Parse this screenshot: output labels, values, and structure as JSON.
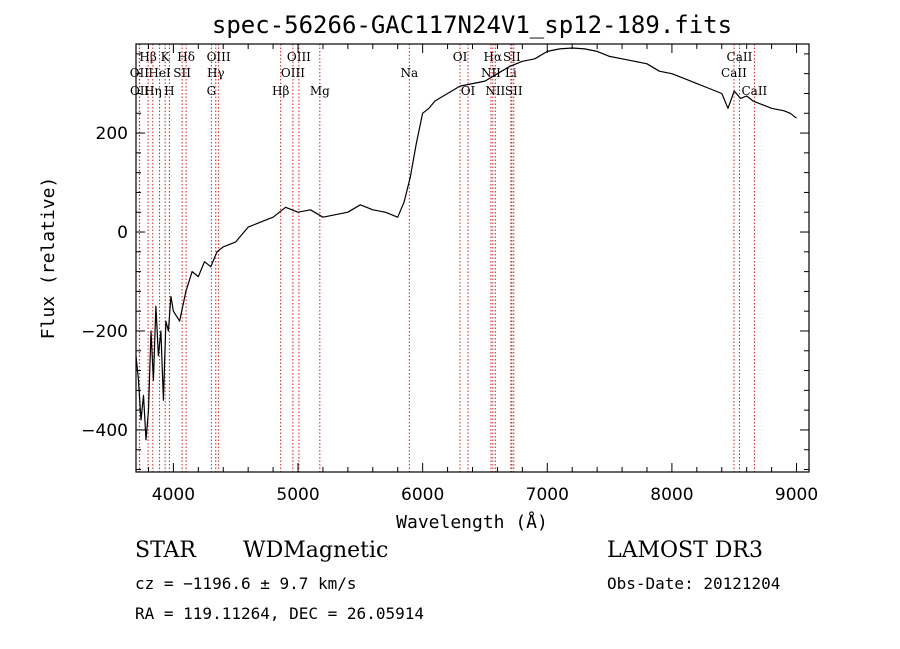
{
  "chart_data": {
    "type": "line",
    "title": "spec-56266-GAC117N24V1_sp12-189.fits",
    "xlabel": "Wavelength (Å)",
    "ylabel": "Flux (relative)",
    "xlim": [
      3700,
      9100
    ],
    "ylim": [
      -485,
      380
    ],
    "x_ticks": [
      4000,
      5000,
      6000,
      7000,
      8000,
      9000
    ],
    "y_ticks": [
      -400,
      -200,
      0,
      200
    ],
    "series": [
      {
        "name": "flux",
        "x": [
          3700,
          3720,
          3740,
          3760,
          3780,
          3800,
          3820,
          3840,
          3860,
          3880,
          3900,
          3920,
          3940,
          3960,
          3980,
          4000,
          4050,
          4100,
          4150,
          4200,
          4250,
          4300,
          4350,
          4400,
          4500,
          4600,
          4700,
          4800,
          4900,
          5000,
          5100,
          5200,
          5300,
          5400,
          5500,
          5600,
          5700,
          5800,
          5850,
          5900,
          5950,
          6000,
          6050,
          6100,
          6200,
          6300,
          6400,
          6500,
          6600,
          6700,
          6800,
          6900,
          7000,
          7100,
          7200,
          7300,
          7400,
          7500,
          7600,
          7700,
          7800,
          7900,
          8000,
          8100,
          8200,
          8300,
          8400,
          8450,
          8500,
          8550,
          8600,
          8650,
          8700,
          8800,
          8900,
          8950,
          9000
        ],
        "y": [
          -250,
          -300,
          -380,
          -330,
          -420,
          -360,
          -200,
          -300,
          -150,
          -250,
          -200,
          -340,
          -180,
          -200,
          -130,
          -160,
          -180,
          -120,
          -80,
          -90,
          -60,
          -70,
          -40,
          -30,
          -20,
          10,
          20,
          30,
          50,
          40,
          45,
          30,
          35,
          40,
          55,
          45,
          40,
          30,
          60,
          110,
          180,
          240,
          250,
          265,
          280,
          295,
          300,
          305,
          320,
          335,
          345,
          350,
          365,
          370,
          372,
          370,
          365,
          355,
          350,
          345,
          340,
          325,
          320,
          310,
          300,
          290,
          280,
          250,
          285,
          270,
          275,
          265,
          260,
          250,
          245,
          240,
          230
        ]
      }
    ],
    "line_markers": [
      {
        "label": "Hβ",
        "wl": 3797,
        "row": 0
      },
      {
        "label": "OII",
        "wl": 3727,
        "row": 1
      },
      {
        "label": "OII",
        "wl": 3729,
        "row": 2
      },
      {
        "label": "K",
        "wl": 3934,
        "row": 0
      },
      {
        "label": "HeI",
        "wl": 3889,
        "row": 1
      },
      {
        "label": "Hη",
        "wl": 3835,
        "row": 2
      },
      {
        "label": "Hδ",
        "wl": 4102,
        "row": 0
      },
      {
        "label": "SII",
        "wl": 4070,
        "row": 1
      },
      {
        "label": "H",
        "wl": 3968,
        "row": 2
      },
      {
        "label": "OIII",
        "wl": 4363,
        "row": 0
      },
      {
        "label": "Hγ",
        "wl": 4340,
        "row": 1
      },
      {
        "label": "G",
        "wl": 4305,
        "row": 2
      },
      {
        "label": "OIII",
        "wl": 5007,
        "row": 0
      },
      {
        "label": "OIII",
        "wl": 4959,
        "row": 1
      },
      {
        "label": "Hβ",
        "wl": 4861,
        "row": 2
      },
      {
        "label": "Mg",
        "wl": 5175,
        "row": 2
      },
      {
        "label": "Na",
        "wl": 5893,
        "row": 1
      },
      {
        "label": "OI",
        "wl": 6300,
        "row": 0
      },
      {
        "label": "OI",
        "wl": 6364,
        "row": 2
      },
      {
        "label": "Hα",
        "wl": 6563,
        "row": 0
      },
      {
        "label": "SII",
        "wl": 6716,
        "row": 0
      },
      {
        "label": "NII",
        "wl": 6548,
        "row": 1
      },
      {
        "label": "Li",
        "wl": 6708,
        "row": 1
      },
      {
        "label": "NII",
        "wl": 6583,
        "row": 2
      },
      {
        "label": "SII",
        "wl": 6731,
        "row": 2
      },
      {
        "label": "CaII",
        "wl": 8542,
        "row": 0
      },
      {
        "label": "CaII",
        "wl": 8498,
        "row": 1
      },
      {
        "label": "CaII",
        "wl": 8662,
        "row": 2
      }
    ]
  },
  "info": {
    "object_class": "STAR",
    "subclass": "WDMagnetic",
    "survey": "LAMOST DR3",
    "cz": "cz = −1196.6 ± 9.7 km/s",
    "obs_date": "Obs-Date: 20121204",
    "coords": "RA = 119.11264, DEC =  26.05914"
  },
  "colors": {
    "spectrum": "#000000",
    "marker": "#cc2222",
    "axis": "#000000"
  }
}
